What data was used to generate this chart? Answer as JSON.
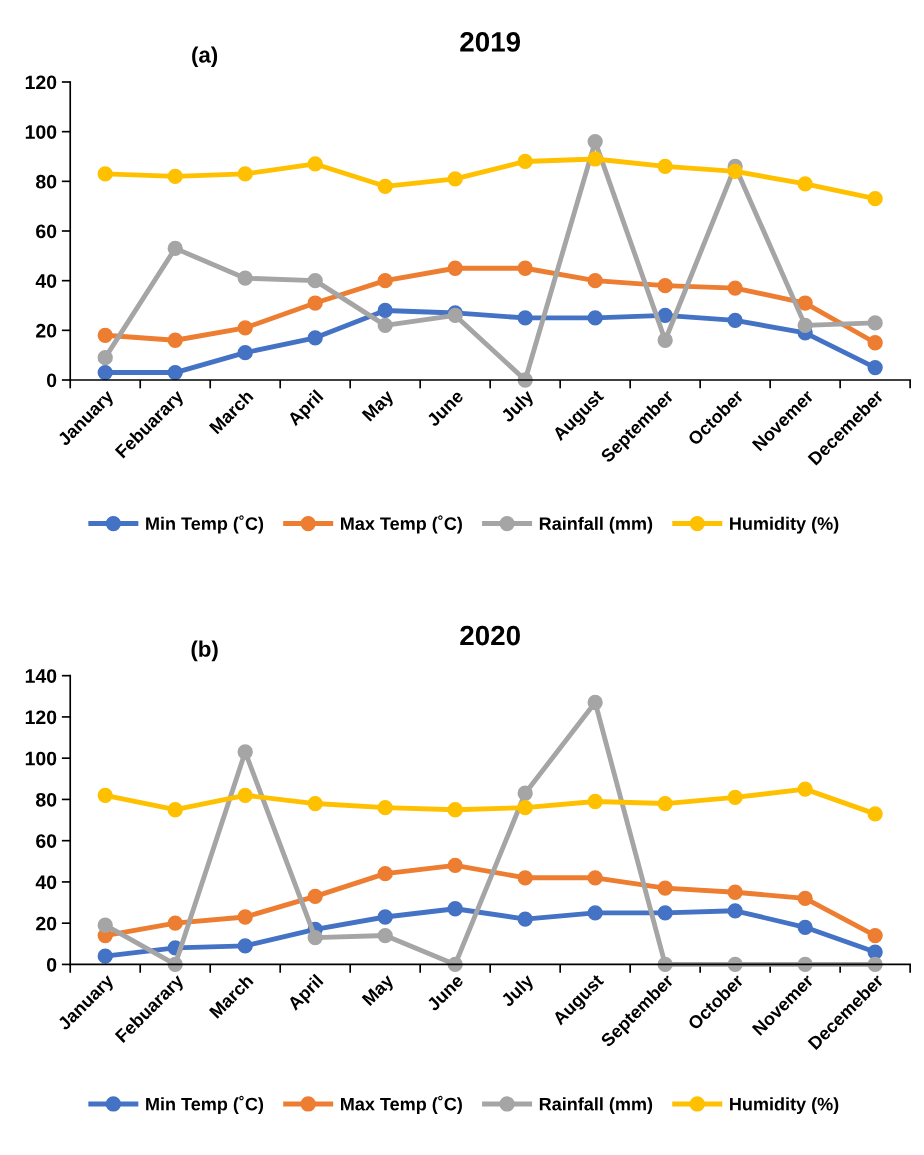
{
  "chart_data": [
    {
      "type": "line",
      "title": "2019",
      "annotations": [
        "(a)"
      ],
      "categories": [
        "January",
        "Febuarary",
        "March",
        "April",
        "May",
        "June",
        "July",
        "August",
        "September",
        "October",
        "Novemer",
        "Decemeber"
      ],
      "ylim": [
        0,
        120
      ],
      "yticks": [
        0,
        20,
        40,
        60,
        80,
        100,
        120
      ],
      "grid": false,
      "legend": "bottom",
      "marker": "circle",
      "line_style": "solid",
      "series": [
        {
          "name": "Min Temp (˚C)",
          "color": "#4472c4",
          "values": [
            3,
            3,
            11,
            17,
            28,
            27,
            25,
            25,
            26,
            24,
            19,
            5
          ]
        },
        {
          "name": "Max Temp (˚C)",
          "color": "#ed7d31",
          "values": [
            18,
            16,
            21,
            31,
            40,
            45,
            45,
            40,
            38,
            37,
            31,
            15
          ]
        },
        {
          "name": "Rainfall (mm)",
          "color": "#a5a5a5",
          "values": [
            9,
            53,
            41,
            40,
            22,
            26,
            0,
            96,
            16,
            86,
            22,
            23
          ]
        },
        {
          "name": "Humidity (%)",
          "color": "#ffc000",
          "values": [
            83,
            82,
            83,
            87,
            78,
            81,
            88,
            89,
            86,
            84,
            79,
            73
          ]
        }
      ]
    },
    {
      "type": "line",
      "title": "2020",
      "annotations": [
        "(b)"
      ],
      "categories": [
        "January",
        "Febuarary",
        "March",
        "April",
        "May",
        "June",
        "July",
        "August",
        "September",
        "October",
        "Novemer",
        "Decemeber"
      ],
      "ylim": [
        0,
        140
      ],
      "yticks": [
        0,
        20,
        40,
        60,
        80,
        100,
        120,
        140
      ],
      "grid": false,
      "legend": "bottom",
      "marker": "circle",
      "line_style": "solid",
      "series": [
        {
          "name": "Min Temp (˚C)",
          "color": "#4472c4",
          "values": [
            4,
            8,
            9,
            17,
            23,
            27,
            22,
            25,
            25,
            26,
            18,
            6
          ]
        },
        {
          "name": "Max Temp (˚C)",
          "color": "#ed7d31",
          "values": [
            14,
            20,
            23,
            33,
            44,
            48,
            42,
            42,
            37,
            35,
            32,
            14
          ]
        },
        {
          "name": "Rainfall (mm)",
          "color": "#a5a5a5",
          "values": [
            19,
            0,
            103,
            13,
            14,
            0,
            83,
            127,
            0,
            0,
            0,
            0
          ]
        },
        {
          "name": "Humidity (%)",
          "color": "#ffc000",
          "values": [
            82,
            75,
            82,
            78,
            76,
            75,
            76,
            79,
            78,
            81,
            85,
            73
          ]
        }
      ]
    }
  ]
}
